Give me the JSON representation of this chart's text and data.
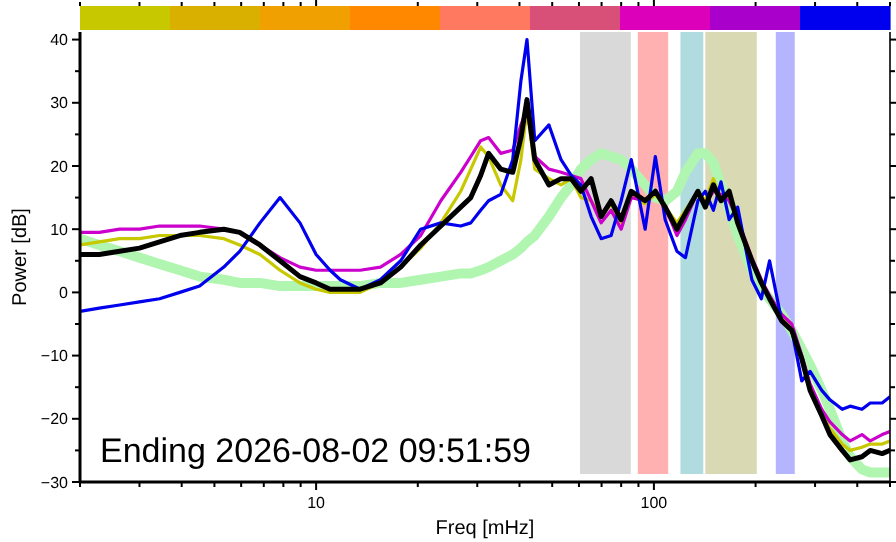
{
  "chart_data": {
    "type": "line",
    "xlabel": "Freq [mHz]",
    "ylabel": "Power [dB]",
    "log": "x",
    "xlim": [
      2,
      500
    ],
    "ylim": [
      -30,
      41.2
    ],
    "xticks": [
      {
        "value": 2,
        "label": null
      },
      {
        "value": 3,
        "label": null
      },
      {
        "value": 4,
        "label": null
      },
      {
        "value": 5,
        "label": null
      },
      {
        "value": 6,
        "label": null
      },
      {
        "value": 7,
        "label": null
      },
      {
        "value": 8,
        "label": null
      },
      {
        "value": 9,
        "label": null
      },
      10,
      {
        "value": 20,
        "label": null
      },
      {
        "value": 30,
        "label": null
      },
      {
        "value": 40,
        "label": null
      },
      {
        "value": 50,
        "label": null
      },
      {
        "value": 60,
        "label": null
      },
      {
        "value": 70,
        "label": null
      },
      {
        "value": 80,
        "label": null
      },
      {
        "value": 90,
        "label": null
      },
      100,
      {
        "value": 200,
        "label": null
      },
      {
        "value": 300,
        "label": null
      },
      {
        "value": 400,
        "label": null
      },
      {
        "value": 500,
        "label": null
      }
    ],
    "yticks": [
      -30,
      {
        "value": -25,
        "label": null
      },
      -20,
      {
        "value": -15,
        "label": null
      },
      -10,
      {
        "value": -5,
        "label": null
      },
      0,
      {
        "value": 5,
        "label": null
      },
      10,
      {
        "value": 15,
        "label": null
      },
      20,
      {
        "value": 25,
        "label": null
      },
      30,
      {
        "value": 35,
        "label": null
      },
      40
    ],
    "grid": false,
    "marker": "none",
    "line_style": "solid",
    "x": [
      2,
      2.28,
      2.62,
      3,
      3.44,
      3.95,
      4.52,
      5.33,
      5.94,
      6.82,
      7.82,
      8.96,
      10,
      11,
      11.8,
      13.5,
      15.5,
      17.8,
      20.4,
      23.4,
      26.8,
      28.7,
      30.7,
      32.4,
      35.2,
      38.2,
      40.4,
      42.1,
      44.4,
      48.9,
      53.1,
      56.9,
      60.8,
      65.2,
      69.8,
      74.7,
      80,
      85.7,
      94.2,
      101,
      108,
      117,
      124,
      135,
      142,
      150,
      158,
      167,
      177,
      195,
      208,
      220,
      239,
      256,
      274,
      290,
      314,
      332,
      361,
      381,
      413,
      437,
      474,
      500
    ],
    "bands": [
      {
        "axis": "x",
        "from": 60,
        "to": 86,
        "color": "#d9d9d9"
      },
      {
        "axis": "x",
        "from": 89,
        "to": 111,
        "color": "#ffb0b0"
      },
      {
        "axis": "x",
        "from": 119,
        "to": 141,
        "color": "#b0dce0"
      },
      {
        "axis": "x",
        "from": 141,
        "to": 203,
        "color": "#d9d9b4"
      },
      {
        "axis": "x",
        "from": 228,
        "to": 263,
        "color": "#b4b4ff"
      }
    ],
    "series": [
      {
        "color": "#b0f5b0",
        "values": [
          8.5,
          7.5,
          6.5,
          5.5,
          4.5,
          3.5,
          2.5,
          2,
          1.5,
          1.5,
          1,
          1,
          1,
          1,
          1,
          1,
          1.5,
          1.5,
          2,
          2.5,
          3,
          3,
          3.5,
          4,
          5,
          6,
          7,
          8,
          9,
          12,
          15,
          17,
          19.5,
          21,
          22,
          21.5,
          21,
          19.5,
          17,
          15,
          14.5,
          16,
          19,
          22,
          22,
          20.5,
          17,
          13,
          9,
          3.5,
          0.5,
          -1,
          -3.5,
          -6,
          -9,
          -11.5,
          -15.5,
          -18.5,
          -23.5,
          -26,
          -28,
          -28.5,
          -28.5,
          -28.5
        ]
      },
      {
        "color": "#c8c800",
        "values": [
          7.5,
          8,
          8.5,
          8.5,
          9,
          9,
          9,
          8.5,
          7.5,
          6,
          3.5,
          1.5,
          0.5,
          0,
          0,
          0,
          1.5,
          4,
          7,
          11,
          16,
          19.5,
          23,
          21.5,
          17,
          14.5,
          21,
          29,
          19.5,
          18,
          17,
          18,
          15,
          14.5,
          12,
          14,
          11,
          15.5,
          14,
          15.5,
          13.5,
          11,
          13,
          16,
          14.5,
          18,
          14.5,
          15,
          11.5,
          5.5,
          1.5,
          -1,
          -3.5,
          -6,
          -10.5,
          -15,
          -19,
          -21.5,
          -24,
          -25,
          -24.5,
          -24,
          -24,
          -23.5
        ]
      },
      {
        "color": "#cc00cc",
        "values": [
          9.5,
          9.5,
          10,
          10,
          10.5,
          10.5,
          10.5,
          10,
          9.5,
          7.5,
          5.5,
          4,
          3.5,
          3.5,
          3.5,
          3.5,
          4,
          6,
          9,
          14.5,
          19,
          21.5,
          24,
          24.5,
          22,
          22.5,
          26.5,
          29,
          21.5,
          19.5,
          19,
          18.5,
          18,
          14.5,
          11,
          13,
          10,
          15,
          14.5,
          16,
          13.5,
          9,
          11.5,
          16,
          14,
          16,
          15.5,
          14.5,
          11.5,
          5.5,
          2,
          -0.5,
          -3.5,
          -5,
          -10,
          -14.5,
          -18.5,
          -20.5,
          -22.5,
          -23.5,
          -22.5,
          -23.5,
          -22.5,
          -22
        ]
      },
      {
        "color": "#0000ee",
        "values": [
          -3,
          -2.5,
          -2,
          -1.5,
          -1,
          0,
          1,
          4,
          6.5,
          11,
          15,
          11,
          6,
          3.5,
          2,
          0.5,
          2,
          5,
          10,
          11,
          10.5,
          11,
          13,
          14.5,
          15.5,
          21,
          33.5,
          40,
          24,
          26.5,
          21,
          18.5,
          17,
          12,
          8.5,
          9,
          14.5,
          21,
          10,
          21.5,
          11.5,
          6.5,
          5.5,
          14.5,
          16,
          13,
          17.5,
          11.5,
          13.5,
          2,
          -1,
          5,
          -4.5,
          -6,
          -14,
          -12.5,
          -15.5,
          -17,
          -18.5,
          -18,
          -18.5,
          -17.5,
          -17.5,
          -16.5
        ]
      },
      {
        "color": "#000000",
        "values": [
          6,
          6,
          6.5,
          7,
          8,
          9,
          9.5,
          10,
          9.5,
          7.5,
          5,
          2.5,
          1.5,
          0.5,
          0.5,
          0.5,
          1.5,
          4,
          7.5,
          10.5,
          13.5,
          15,
          18.5,
          22,
          19.5,
          19,
          24.5,
          30.5,
          21,
          17,
          18,
          18,
          16,
          18,
          12,
          14.5,
          11.5,
          16,
          14.5,
          16,
          13.5,
          10,
          12.5,
          16,
          13.5,
          17,
          14.5,
          16,
          11,
          5,
          1.5,
          -1,
          -4.5,
          -6,
          -10.5,
          -15.5,
          -19.5,
          -22.5,
          -25,
          -26.5,
          -26,
          -25,
          -25.5,
          -25
        ]
      }
    ],
    "annotations": [
      "Ending 2026-08-02 09:51:59"
    ]
  }
}
